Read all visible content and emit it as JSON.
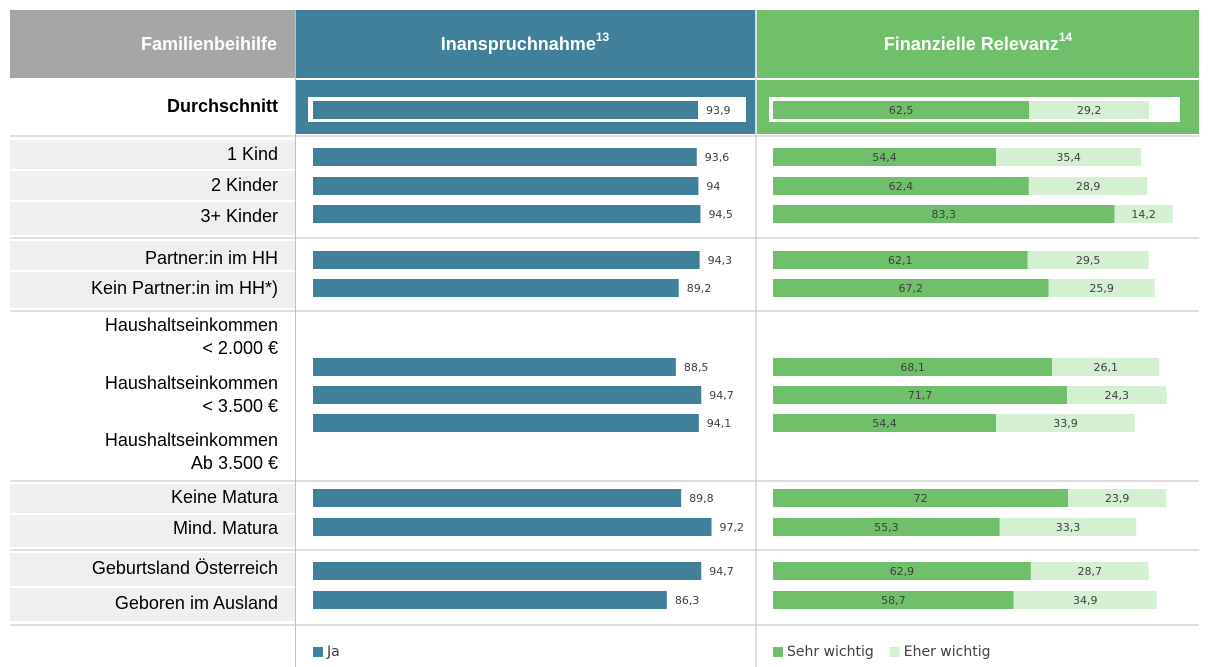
{
  "table": {
    "header": "Familienbeihilfe",
    "rows": [
      "Durchschnitt",
      "1 Kind",
      "2 Kinder",
      "3+ Kinder",
      "Partner:in im HH",
      "Kein Partner:in im HH*)",
      "Haushaltseinkommen\n< 2.000 €",
      "Haushaltseinkommen\n< 3.500 €",
      "Haushaltseinkommen\nAb 3.500 €",
      "Keine Matura",
      "Mind. Matura",
      "Geburtsland Österreich",
      "Geboren im Ausland"
    ]
  },
  "chart_data": [
    {
      "type": "bar",
      "title": "Inanspruchnahme",
      "title_note": "13",
      "series": [
        {
          "name": "Ja",
          "color": "#41809b",
          "values": [
            93.9,
            93.6,
            94,
            94.5,
            94.3,
            89.2,
            88.5,
            94.7,
            94.1,
            89.8,
            97.2,
            94.7,
            86.3
          ],
          "value_labels": [
            "93,9",
            "93,6",
            "94",
            "94,5",
            "94,3",
            "89,2",
            "88,5",
            "94,7",
            "94,1",
            "89,8",
            "97,2",
            "94,7",
            "86,3"
          ]
        }
      ]
    },
    {
      "type": "stacked_bar",
      "title": "Finanzielle Relevanz",
      "title_note": "14",
      "series": [
        {
          "name": "Sehr wichtig",
          "color": "#70bf6a",
          "values": [
            62.5,
            54.4,
            62.4,
            83.3,
            62.1,
            67.2,
            68.1,
            71.7,
            54.4,
            72,
            55.3,
            62.9,
            58.7
          ],
          "value_labels": [
            "62,5",
            "54,4",
            "62,4",
            "83,3",
            "62,1",
            "67,2",
            "68,1",
            "71,7",
            "54,4",
            "72",
            "55,3",
            "62,9",
            "58,7"
          ]
        },
        {
          "name": "Eher wichtig",
          "color": "#d5efd3",
          "values": [
            29.2,
            35.4,
            28.9,
            14.2,
            29.5,
            25.9,
            26.1,
            24.3,
            33.9,
            23.9,
            33.3,
            28.7,
            34.9
          ],
          "value_labels": [
            "29,2",
            "35,4",
            "28,9",
            "14,2",
            "29,5",
            "25,9",
            "26,1",
            "24,3",
            "33,9",
            "23,9",
            "33,3",
            "28,7",
            "34,9"
          ]
        }
      ]
    }
  ]
}
